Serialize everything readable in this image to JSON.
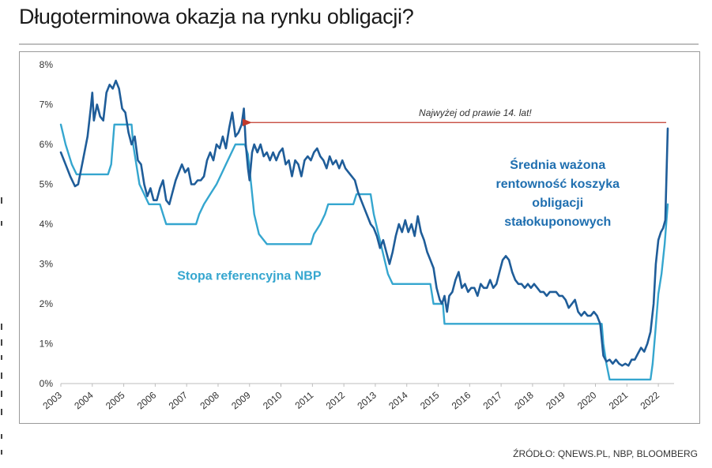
{
  "page": {
    "title": "Długoterminowa okazja na rynku obligacji?",
    "source": "ŹRÓDŁO: QNEWS.PL, NBP, BLOOMBERG"
  },
  "chart_data": {
    "type": "line",
    "title": "",
    "xlabel": "",
    "ylabel": "",
    "xlim": [
      2003,
      2022.5
    ],
    "ylim": [
      0,
      8
    ],
    "yticks": [
      "0%",
      "1%",
      "2%",
      "3%",
      "4%",
      "5%",
      "6%",
      "7%",
      "8%"
    ],
    "xticks": [
      "2003",
      "2004",
      "2005",
      "2006",
      "2007",
      "2008",
      "2009",
      "2010",
      "2011",
      "2012",
      "2013",
      "2014",
      "2015",
      "2016",
      "2017",
      "2018",
      "2019",
      "2020",
      "2021",
      "2022"
    ],
    "grid": false,
    "colors": {
      "yield": "#1f5d99",
      "rate": "#35a6cf",
      "arrow": "#c0392b",
      "yield_label": "#1f6fb0",
      "rate_label": "#35a6cf"
    },
    "annotations": {
      "arrow_text": "Najwyżej od prawie 14. lat!",
      "yield_label": [
        "Średnia ważona",
        "rentowność koszyka",
        "obligacji",
        "stałokuponowych"
      ],
      "rate_label": "Stopa referencyjna NBP"
    },
    "series": [
      {
        "name": "Średnia ważona rentowność koszyka obligacji stałokuponowych",
        "points": [
          [
            2003.0,
            5.8
          ],
          [
            2003.15,
            5.5
          ],
          [
            2003.3,
            5.2
          ],
          [
            2003.45,
            4.95
          ],
          [
            2003.55,
            5.0
          ],
          [
            2003.7,
            5.6
          ],
          [
            2003.85,
            6.2
          ],
          [
            2003.95,
            6.9
          ],
          [
            2004.0,
            7.3
          ],
          [
            2004.05,
            6.6
          ],
          [
            2004.15,
            7.0
          ],
          [
            2004.25,
            6.7
          ],
          [
            2004.35,
            6.6
          ],
          [
            2004.45,
            7.3
          ],
          [
            2004.55,
            7.5
          ],
          [
            2004.65,
            7.4
          ],
          [
            2004.75,
            7.6
          ],
          [
            2004.85,
            7.4
          ],
          [
            2004.95,
            6.9
          ],
          [
            2005.05,
            6.8
          ],
          [
            2005.15,
            6.3
          ],
          [
            2005.25,
            6.0
          ],
          [
            2005.35,
            6.2
          ],
          [
            2005.45,
            5.6
          ],
          [
            2005.55,
            5.5
          ],
          [
            2005.65,
            5.0
          ],
          [
            2005.75,
            4.7
          ],
          [
            2005.85,
            4.9
          ],
          [
            2005.95,
            4.6
          ],
          [
            2006.05,
            4.6
          ],
          [
            2006.15,
            4.9
          ],
          [
            2006.25,
            5.1
          ],
          [
            2006.35,
            4.6
          ],
          [
            2006.45,
            4.5
          ],
          [
            2006.55,
            4.8
          ],
          [
            2006.65,
            5.1
          ],
          [
            2006.75,
            5.3
          ],
          [
            2006.85,
            5.5
          ],
          [
            2006.95,
            5.3
          ],
          [
            2007.05,
            5.4
          ],
          [
            2007.15,
            5.0
          ],
          [
            2007.25,
            5.0
          ],
          [
            2007.35,
            5.1
          ],
          [
            2007.45,
            5.1
          ],
          [
            2007.55,
            5.2
          ],
          [
            2007.65,
            5.6
          ],
          [
            2007.75,
            5.8
          ],
          [
            2007.85,
            5.6
          ],
          [
            2007.95,
            6.0
          ],
          [
            2008.05,
            5.9
          ],
          [
            2008.15,
            6.2
          ],
          [
            2008.25,
            5.9
          ],
          [
            2008.35,
            6.4
          ],
          [
            2008.45,
            6.8
          ],
          [
            2008.55,
            6.2
          ],
          [
            2008.65,
            6.3
          ],
          [
            2008.75,
            6.5
          ],
          [
            2008.82,
            6.9
          ],
          [
            2008.88,
            6.0
          ],
          [
            2008.95,
            5.4
          ],
          [
            2009.0,
            5.1
          ],
          [
            2009.08,
            5.8
          ],
          [
            2009.15,
            6.0
          ],
          [
            2009.25,
            5.8
          ],
          [
            2009.35,
            6.0
          ],
          [
            2009.45,
            5.7
          ],
          [
            2009.55,
            5.8
          ],
          [
            2009.65,
            5.6
          ],
          [
            2009.75,
            5.8
          ],
          [
            2009.85,
            5.6
          ],
          [
            2009.95,
            5.8
          ],
          [
            2010.05,
            5.9
          ],
          [
            2010.15,
            5.5
          ],
          [
            2010.25,
            5.6
          ],
          [
            2010.35,
            5.2
          ],
          [
            2010.45,
            5.6
          ],
          [
            2010.55,
            5.5
          ],
          [
            2010.65,
            5.2
          ],
          [
            2010.75,
            5.6
          ],
          [
            2010.85,
            5.7
          ],
          [
            2010.95,
            5.6
          ],
          [
            2011.05,
            5.8
          ],
          [
            2011.15,
            5.9
          ],
          [
            2011.25,
            5.7
          ],
          [
            2011.35,
            5.6
          ],
          [
            2011.45,
            5.4
          ],
          [
            2011.55,
            5.7
          ],
          [
            2011.65,
            5.5
          ],
          [
            2011.75,
            5.6
          ],
          [
            2011.85,
            5.4
          ],
          [
            2011.95,
            5.6
          ],
          [
            2012.05,
            5.4
          ],
          [
            2012.15,
            5.3
          ],
          [
            2012.25,
            5.2
          ],
          [
            2012.35,
            5.1
          ],
          [
            2012.45,
            4.8
          ],
          [
            2012.55,
            4.6
          ],
          [
            2012.65,
            4.4
          ],
          [
            2012.75,
            4.2
          ],
          [
            2012.85,
            4.0
          ],
          [
            2012.95,
            3.9
          ],
          [
            2013.05,
            3.7
          ],
          [
            2013.15,
            3.4
          ],
          [
            2013.25,
            3.6
          ],
          [
            2013.35,
            3.3
          ],
          [
            2013.45,
            3.0
          ],
          [
            2013.55,
            3.3
          ],
          [
            2013.65,
            3.7
          ],
          [
            2013.75,
            4.0
          ],
          [
            2013.85,
            3.8
          ],
          [
            2013.95,
            4.1
          ],
          [
            2014.05,
            3.8
          ],
          [
            2014.15,
            4.0
          ],
          [
            2014.25,
            3.7
          ],
          [
            2014.35,
            4.2
          ],
          [
            2014.45,
            3.8
          ],
          [
            2014.55,
            3.6
          ],
          [
            2014.65,
            3.3
          ],
          [
            2014.75,
            3.1
          ],
          [
            2014.85,
            2.9
          ],
          [
            2014.95,
            2.4
          ],
          [
            2015.05,
            2.1
          ],
          [
            2015.12,
            2.0
          ],
          [
            2015.2,
            2.2
          ],
          [
            2015.28,
            1.8
          ],
          [
            2015.35,
            2.2
          ],
          [
            2015.45,
            2.3
          ],
          [
            2015.55,
            2.6
          ],
          [
            2015.65,
            2.8
          ],
          [
            2015.75,
            2.4
          ],
          [
            2015.85,
            2.5
          ],
          [
            2015.95,
            2.3
          ],
          [
            2016.05,
            2.4
          ],
          [
            2016.15,
            2.4
          ],
          [
            2016.25,
            2.2
          ],
          [
            2016.35,
            2.5
          ],
          [
            2016.45,
            2.4
          ],
          [
            2016.55,
            2.4
          ],
          [
            2016.65,
            2.6
          ],
          [
            2016.75,
            2.4
          ],
          [
            2016.85,
            2.5
          ],
          [
            2016.95,
            2.8
          ],
          [
            2017.05,
            3.1
          ],
          [
            2017.15,
            3.2
          ],
          [
            2017.25,
            3.1
          ],
          [
            2017.35,
            2.8
          ],
          [
            2017.45,
            2.6
          ],
          [
            2017.55,
            2.5
          ],
          [
            2017.65,
            2.5
          ],
          [
            2017.75,
            2.4
          ],
          [
            2017.85,
            2.5
          ],
          [
            2017.95,
            2.4
          ],
          [
            2018.05,
            2.5
          ],
          [
            2018.15,
            2.4
          ],
          [
            2018.25,
            2.3
          ],
          [
            2018.35,
            2.3
          ],
          [
            2018.45,
            2.2
          ],
          [
            2018.55,
            2.3
          ],
          [
            2018.65,
            2.3
          ],
          [
            2018.75,
            2.3
          ],
          [
            2018.85,
            2.2
          ],
          [
            2018.95,
            2.2
          ],
          [
            2019.05,
            2.1
          ],
          [
            2019.15,
            1.9
          ],
          [
            2019.25,
            2.0
          ],
          [
            2019.35,
            2.1
          ],
          [
            2019.45,
            1.8
          ],
          [
            2019.55,
            1.7
          ],
          [
            2019.65,
            1.8
          ],
          [
            2019.75,
            1.7
          ],
          [
            2019.85,
            1.7
          ],
          [
            2019.95,
            1.8
          ],
          [
            2020.05,
            1.7
          ],
          [
            2020.15,
            1.5
          ],
          [
            2020.25,
            0.7
          ],
          [
            2020.35,
            0.55
          ],
          [
            2020.45,
            0.6
          ],
          [
            2020.55,
            0.5
          ],
          [
            2020.65,
            0.6
          ],
          [
            2020.75,
            0.5
          ],
          [
            2020.85,
            0.45
          ],
          [
            2020.95,
            0.5
          ],
          [
            2021.05,
            0.45
          ],
          [
            2021.15,
            0.6
          ],
          [
            2021.25,
            0.6
          ],
          [
            2021.35,
            0.75
          ],
          [
            2021.45,
            0.9
          ],
          [
            2021.55,
            0.8
          ],
          [
            2021.65,
            1.0
          ],
          [
            2021.75,
            1.3
          ],
          [
            2021.85,
            2.0
          ],
          [
            2021.92,
            3.0
          ],
          [
            2022.0,
            3.6
          ],
          [
            2022.08,
            3.8
          ],
          [
            2022.15,
            3.9
          ],
          [
            2022.22,
            4.1
          ],
          [
            2022.3,
            6.4
          ]
        ]
      },
      {
        "name": "Stopa referencyjna NBP",
        "points": [
          [
            2003.0,
            6.5
          ],
          [
            2003.15,
            6.0
          ],
          [
            2003.35,
            5.5
          ],
          [
            2003.5,
            5.25
          ],
          [
            2004.5,
            5.25
          ],
          [
            2004.6,
            5.5
          ],
          [
            2004.65,
            6.0
          ],
          [
            2004.7,
            6.5
          ],
          [
            2005.25,
            6.5
          ],
          [
            2005.3,
            6.0
          ],
          [
            2005.4,
            5.5
          ],
          [
            2005.5,
            5.0
          ],
          [
            2005.65,
            4.75
          ],
          [
            2005.8,
            4.5
          ],
          [
            2006.15,
            4.5
          ],
          [
            2006.25,
            4.25
          ],
          [
            2006.35,
            4.0
          ],
          [
            2007.3,
            4.0
          ],
          [
            2007.4,
            4.25
          ],
          [
            2007.55,
            4.5
          ],
          [
            2007.75,
            4.75
          ],
          [
            2007.95,
            5.0
          ],
          [
            2008.1,
            5.25
          ],
          [
            2008.25,
            5.5
          ],
          [
            2008.4,
            5.75
          ],
          [
            2008.55,
            6.0
          ],
          [
            2008.85,
            6.0
          ],
          [
            2008.95,
            5.75
          ],
          [
            2009.05,
            5.0
          ],
          [
            2009.15,
            4.25
          ],
          [
            2009.3,
            3.75
          ],
          [
            2009.55,
            3.5
          ],
          [
            2010.95,
            3.5
          ],
          [
            2011.05,
            3.75
          ],
          [
            2011.25,
            4.0
          ],
          [
            2011.4,
            4.25
          ],
          [
            2011.5,
            4.5
          ],
          [
            2012.3,
            4.5
          ],
          [
            2012.4,
            4.75
          ],
          [
            2012.85,
            4.75
          ],
          [
            2012.95,
            4.25
          ],
          [
            2013.1,
            3.75
          ],
          [
            2013.25,
            3.25
          ],
          [
            2013.4,
            2.75
          ],
          [
            2013.55,
            2.5
          ],
          [
            2014.75,
            2.5
          ],
          [
            2014.85,
            2.0
          ],
          [
            2015.15,
            2.0
          ],
          [
            2015.2,
            1.5
          ],
          [
            2020.2,
            1.5
          ],
          [
            2020.25,
            1.0
          ],
          [
            2020.35,
            0.5
          ],
          [
            2020.45,
            0.1
          ],
          [
            2021.75,
            0.1
          ],
          [
            2021.82,
            0.5
          ],
          [
            2021.9,
            1.25
          ],
          [
            2022.0,
            2.25
          ],
          [
            2022.1,
            2.75
          ],
          [
            2022.2,
            3.5
          ],
          [
            2022.3,
            4.5
          ]
        ]
      }
    ]
  }
}
